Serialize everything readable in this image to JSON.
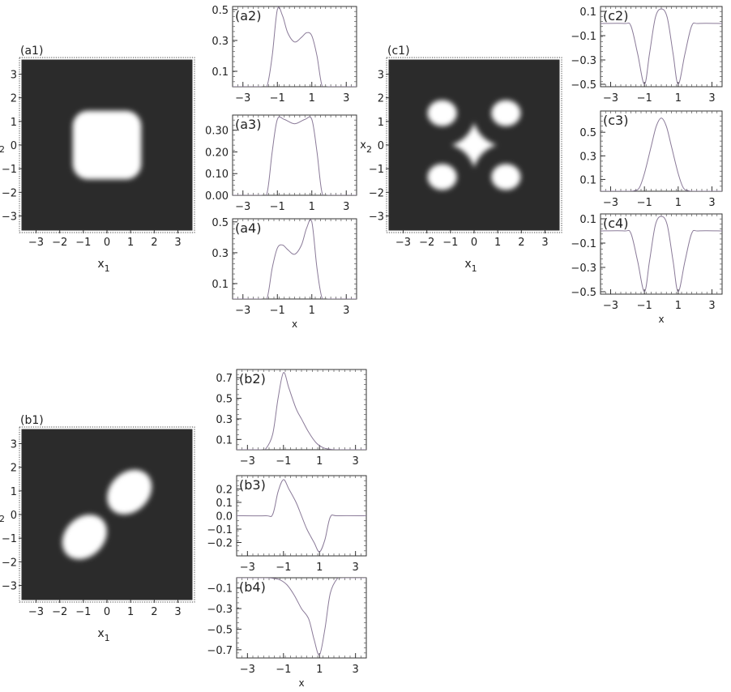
{
  "chart_data": [
    {
      "panel": "a1",
      "type": "heatmap",
      "label": "(a1)",
      "xlabel": "x",
      "xlabel_sub": "1",
      "ylabel": "x",
      "ylabel_sub": "2",
      "xlim": [
        -3.6,
        3.6
      ],
      "ylim": [
        -3.6,
        3.6
      ],
      "xticks": [
        -3,
        -2,
        -1,
        0,
        1,
        2,
        3
      ],
      "yticks": [
        -3,
        -2,
        -1,
        0,
        1,
        2,
        3
      ],
      "density": "rounded square concentrated in |x1|,|x2| < 1.5",
      "colors": {
        "background": "#2b2b2b",
        "high": "#ffffff"
      }
    },
    {
      "panel": "a2",
      "type": "line",
      "label": "(a2)",
      "xlabel": "",
      "xlim": [
        -3.6,
        3.6
      ],
      "ylim": [
        0,
        0.52
      ],
      "xticks": [
        -3,
        -1,
        1,
        3
      ],
      "yticks": [
        0.1,
        0.3,
        0.5
      ],
      "x": [
        -3.6,
        -2.0,
        -1.6,
        -1.3,
        -1.0,
        -0.7,
        -0.4,
        0.0,
        0.4,
        0.7,
        1.0,
        1.3,
        1.6,
        2.0,
        3.6
      ],
      "y": [
        0.0,
        0.0,
        0.005,
        0.2,
        0.5,
        0.46,
        0.35,
        0.29,
        0.32,
        0.35,
        0.33,
        0.2,
        0.005,
        0.0,
        0.0
      ]
    },
    {
      "panel": "a3",
      "type": "line",
      "label": "(a3)",
      "xlabel": "",
      "xlim": [
        -3.6,
        3.6
      ],
      "ylim": [
        0,
        0.37
      ],
      "xticks": [
        -3,
        -1,
        1,
        3
      ],
      "yticks": [
        "0.00",
        "0.10",
        "0.20",
        "0.30"
      ],
      "x": [
        -3.6,
        -2.0,
        -1.6,
        -1.3,
        -1.0,
        -0.6,
        0.0,
        0.6,
        1.0,
        1.3,
        1.6,
        2.0,
        3.6
      ],
      "y": [
        0.0,
        0.0,
        0.01,
        0.2,
        0.35,
        0.35,
        0.33,
        0.35,
        0.35,
        0.2,
        0.01,
        0.0,
        0.0
      ]
    },
    {
      "panel": "a4",
      "type": "line",
      "label": "(a4)",
      "xlabel": "x",
      "xlim": [
        -3.6,
        3.6
      ],
      "ylim": [
        0,
        0.52
      ],
      "xticks": [
        -3,
        -1,
        1,
        3
      ],
      "yticks": [
        0.1,
        0.3,
        0.5
      ],
      "x": [
        -3.6,
        -2.0,
        -1.6,
        -1.3,
        -1.0,
        -0.7,
        -0.4,
        0.0,
        0.4,
        0.7,
        1.0,
        1.3,
        1.6,
        2.0,
        3.6
      ],
      "y": [
        0.0,
        0.0,
        0.005,
        0.2,
        0.33,
        0.35,
        0.32,
        0.29,
        0.35,
        0.46,
        0.5,
        0.2,
        0.005,
        0.0,
        0.0
      ]
    },
    {
      "panel": "b1",
      "type": "heatmap",
      "label": "(b1)",
      "xlabel": "x",
      "xlabel_sub": "1",
      "ylabel": "x",
      "ylabel_sub": "2",
      "xlim": [
        -3.6,
        3.6
      ],
      "ylim": [
        -3.6,
        3.6
      ],
      "xticks": [
        -3,
        -2,
        -1,
        0,
        1,
        2,
        3
      ],
      "yticks": [
        -3,
        -2,
        -1,
        0,
        1,
        2,
        3
      ],
      "density": "two lobes along the diagonal x1 = x2, centred near (-1,-1) and (1,1)",
      "colors": {
        "background": "#2b2b2b",
        "high": "#ffffff"
      }
    },
    {
      "panel": "b2",
      "type": "line",
      "label": "(b2)",
      "xlabel": "",
      "xlim": [
        -3.6,
        3.6
      ],
      "ylim": [
        0,
        0.78
      ],
      "xticks": [
        -3,
        -1,
        1,
        3
      ],
      "yticks": [
        0.1,
        0.3,
        0.5,
        0.7
      ],
      "x": [
        -3.6,
        -2.3,
        -2.0,
        -1.6,
        -1.3,
        -1.0,
        -0.7,
        -0.3,
        0.0,
        0.4,
        0.8,
        1.2,
        1.6,
        2.0,
        3.6
      ],
      "y": [
        0.0,
        0.0,
        0.005,
        0.15,
        0.5,
        0.75,
        0.6,
        0.4,
        0.3,
        0.17,
        0.07,
        0.02,
        0.005,
        0.0,
        0.0
      ]
    },
    {
      "panel": "b3",
      "type": "line",
      "label": "(b3)",
      "xlabel": "",
      "xlim": [
        -3.6,
        3.6
      ],
      "ylim": [
        -0.3,
        0.3
      ],
      "xticks": [
        -3,
        -1,
        1,
        3
      ],
      "yticks": [
        -0.2,
        -0.1,
        "0.0",
        0.1,
        0.2
      ],
      "x": [
        -3.6,
        -2.0,
        -1.6,
        -1.3,
        -1.0,
        -0.7,
        -0.3,
        0.0,
        0.3,
        0.7,
        1.0,
        1.3,
        1.6,
        2.0,
        3.6
      ],
      "y": [
        0.0,
        0.0,
        0.01,
        0.18,
        0.27,
        0.2,
        0.1,
        0.0,
        -0.1,
        -0.2,
        -0.27,
        -0.18,
        -0.01,
        0.0,
        0.0
      ]
    },
    {
      "panel": "b4",
      "type": "line",
      "label": "(b4)",
      "xlabel": "x",
      "xlim": [
        -3.6,
        3.6
      ],
      "ylim": [
        -0.78,
        0.0
      ],
      "xticks": [
        -3,
        -1,
        1,
        3
      ],
      "yticks": [
        -0.1,
        -0.3,
        -0.5,
        -0.7
      ],
      "x": [
        -3.6,
        -2.0,
        -1.6,
        -1.2,
        -0.8,
        -0.4,
        0.0,
        0.4,
        0.7,
        1.0,
        1.3,
        1.6,
        2.0,
        2.3,
        3.6
      ],
      "y": [
        0.0,
        0.0,
        -0.005,
        -0.02,
        -0.07,
        -0.17,
        -0.3,
        -0.4,
        -0.6,
        -0.75,
        -0.5,
        -0.15,
        -0.005,
        0.0,
        0.0
      ]
    },
    {
      "panel": "c1",
      "type": "heatmap",
      "label": "(c1)",
      "xlabel": "x",
      "xlabel_sub": "1",
      "ylabel": "x",
      "ylabel_sub": "2",
      "xlim": [
        -3.6,
        3.6
      ],
      "ylim": [
        -3.6,
        3.6
      ],
      "xticks": [
        -3,
        -2,
        -1,
        0,
        1,
        2,
        3
      ],
      "yticks": [
        -3,
        -2,
        -1,
        0,
        1,
        2,
        3
      ],
      "density": "central diamond plus four lobes near (±1.3, ±1.3)",
      "colors": {
        "background": "#2b2b2b",
        "high": "#ffffff"
      }
    },
    {
      "panel": "c2",
      "type": "line",
      "label": "(c2)",
      "xlabel": "",
      "xlim": [
        -3.6,
        3.6
      ],
      "ylim": [
        -0.52,
        0.14
      ],
      "xticks": [
        -3,
        -1,
        1,
        3
      ],
      "yticks": [
        0.1,
        -0.1,
        -0.3,
        -0.5
      ],
      "x": [
        -3.6,
        -2.2,
        -1.8,
        -1.4,
        -1.0,
        -0.7,
        -0.35,
        0.0,
        0.35,
        0.7,
        1.0,
        1.4,
        1.8,
        2.2,
        3.6
      ],
      "y": [
        0.0,
        0.0,
        -0.02,
        -0.25,
        -0.5,
        -0.25,
        0.05,
        0.12,
        0.05,
        -0.25,
        -0.5,
        -0.25,
        -0.02,
        0.0,
        0.0
      ]
    },
    {
      "panel": "c3",
      "type": "line",
      "label": "(c3)",
      "xlabel": "",
      "xlim": [
        -3.6,
        3.6
      ],
      "ylim": [
        0,
        0.68
      ],
      "xticks": [
        -3,
        -1,
        1,
        3
      ],
      "yticks": [
        0.1,
        0.3,
        0.5
      ],
      "x": [
        -3.6,
        -2.0,
        -1.6,
        -1.3,
        -1.0,
        -0.6,
        -0.3,
        0.0,
        0.3,
        0.6,
        1.0,
        1.3,
        1.6,
        2.0,
        3.6
      ],
      "y": [
        0.0,
        0.0,
        0.005,
        0.03,
        0.15,
        0.38,
        0.55,
        0.62,
        0.55,
        0.38,
        0.15,
        0.03,
        0.005,
        0.0,
        0.0
      ]
    },
    {
      "panel": "c4",
      "type": "line",
      "label": "(c4)",
      "xlabel": "x",
      "xlim": [
        -3.6,
        3.6
      ],
      "ylim": [
        -0.52,
        0.14
      ],
      "xticks": [
        -3,
        -1,
        1,
        3
      ],
      "yticks": [
        0.1,
        -0.1,
        -0.3,
        -0.5
      ],
      "x": [
        -3.6,
        -2.2,
        -1.8,
        -1.4,
        -1.0,
        -0.7,
        -0.35,
        0.0,
        0.35,
        0.7,
        1.0,
        1.4,
        1.8,
        2.2,
        3.6
      ],
      "y": [
        0.0,
        0.0,
        -0.02,
        -0.25,
        -0.5,
        -0.25,
        0.05,
        0.12,
        0.05,
        -0.25,
        -0.5,
        -0.25,
        -0.02,
        0.0,
        0.0
      ]
    }
  ]
}
